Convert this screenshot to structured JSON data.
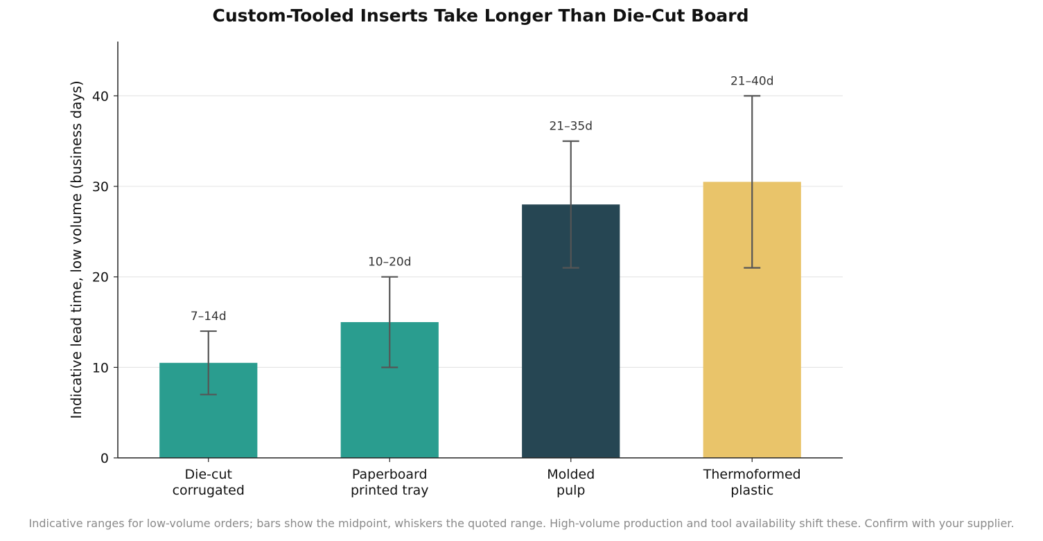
{
  "chart_data": {
    "type": "bar",
    "title": "Custom-Tooled Inserts Take Longer Than Die-Cut Board",
    "xlabel": "",
    "ylabel": "Indicative lead time, low volume (business days)",
    "ylim": [
      0,
      46
    ],
    "yticks": [
      0,
      10,
      20,
      30,
      40
    ],
    "grid": "horizontal",
    "categories": [
      [
        "Die-cut",
        "corrugated"
      ],
      [
        "Paperboard",
        "printed tray"
      ],
      [
        "Molded",
        "pulp"
      ],
      [
        "Thermoformed",
        "plastic"
      ]
    ],
    "values": [
      10.5,
      15,
      28,
      30.5
    ],
    "ranges": [
      [
        7,
        14
      ],
      [
        10,
        20
      ],
      [
        21,
        35
      ],
      [
        21,
        40
      ]
    ],
    "range_labels": [
      "7–14d",
      "10–20d",
      "21–35d",
      "21–40d"
    ],
    "colors": [
      "#2a9d8f",
      "#2a9d8f",
      "#264653",
      "#e9c46a"
    ],
    "error_bar_color": "#555555",
    "footnote": "Indicative ranges for low-volume orders; bars show the midpoint, whiskers the quoted range. High-volume production and tool availability shift these. Confirm with your supplier."
  }
}
